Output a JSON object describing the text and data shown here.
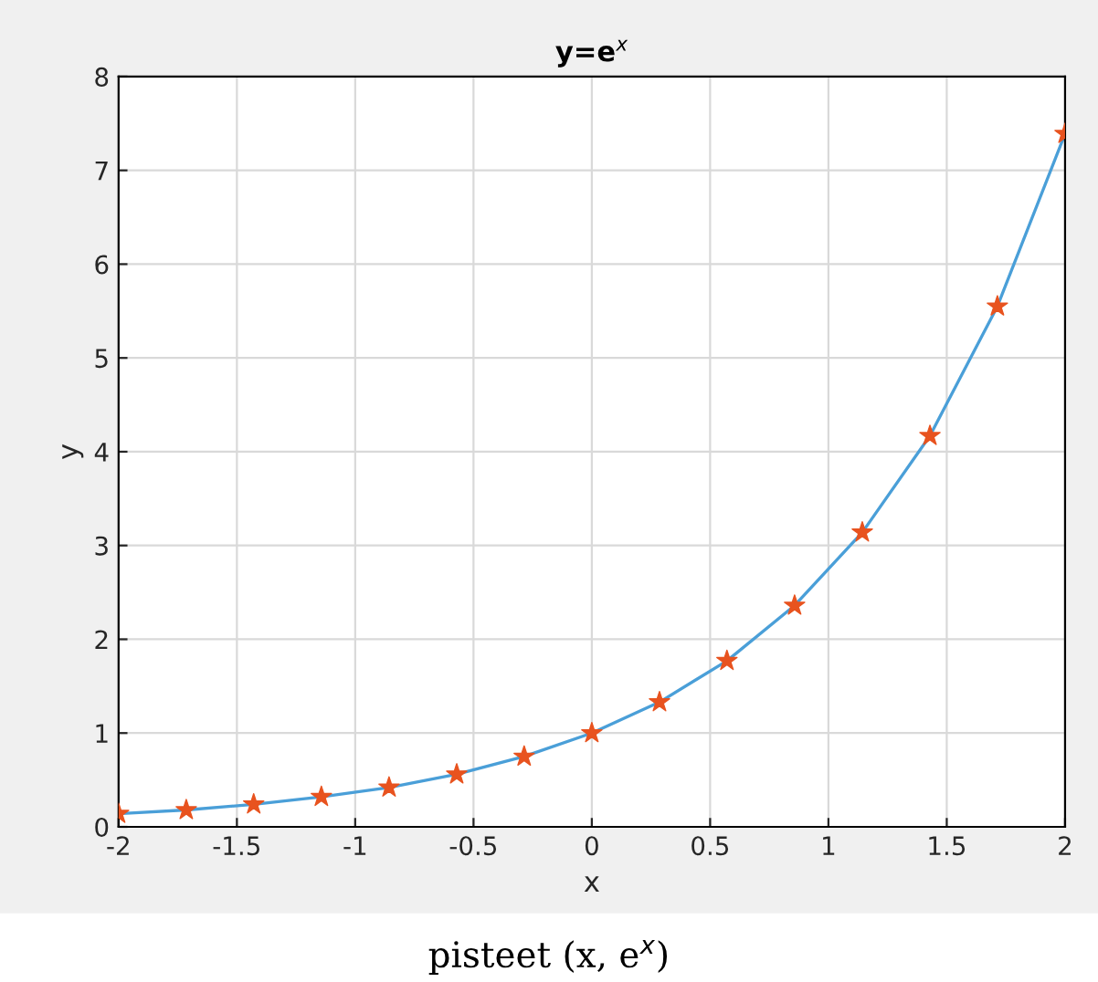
{
  "chart_data": {
    "type": "line",
    "title": "y=e$^{x}$",
    "xlabel": "x",
    "ylabel": "y",
    "annotations": [
      "pisteet (x, e$^{x}$)"
    ],
    "x": [
      -2,
      -1.714,
      -1.429,
      -1.143,
      -0.857,
      -0.571,
      -0.286,
      0,
      0.286,
      0.571,
      0.857,
      1.143,
      1.429,
      1.714,
      2
    ],
    "series": [
      {
        "color": "#4a9fd8",
        "marker": "none",
        "values": [
          0.14,
          0.18,
          0.24,
          0.32,
          0.42,
          0.56,
          0.75,
          1,
          1.33,
          1.77,
          2.36,
          3.14,
          4.17,
          5.55,
          7.39
        ]
      },
      {
        "type": "scatter",
        "color": "#e8531f",
        "marker": "star",
        "values": [
          0.14,
          0.18,
          0.24,
          0.32,
          0.42,
          0.56,
          0.75,
          1,
          1.33,
          1.77,
          2.36,
          3.14,
          4.17,
          5.55,
          7.39
        ]
      }
    ],
    "xlim": [
      -2,
      2
    ],
    "xticks": [
      -2,
      -1.5,
      -1,
      -0.5,
      0,
      0.5,
      1,
      1.5,
      2
    ],
    "ylim": [
      0,
      8
    ],
    "yticks": [
      0,
      1,
      2,
      3,
      4,
      5,
      6,
      7,
      8
    ],
    "grid": true
  }
}
